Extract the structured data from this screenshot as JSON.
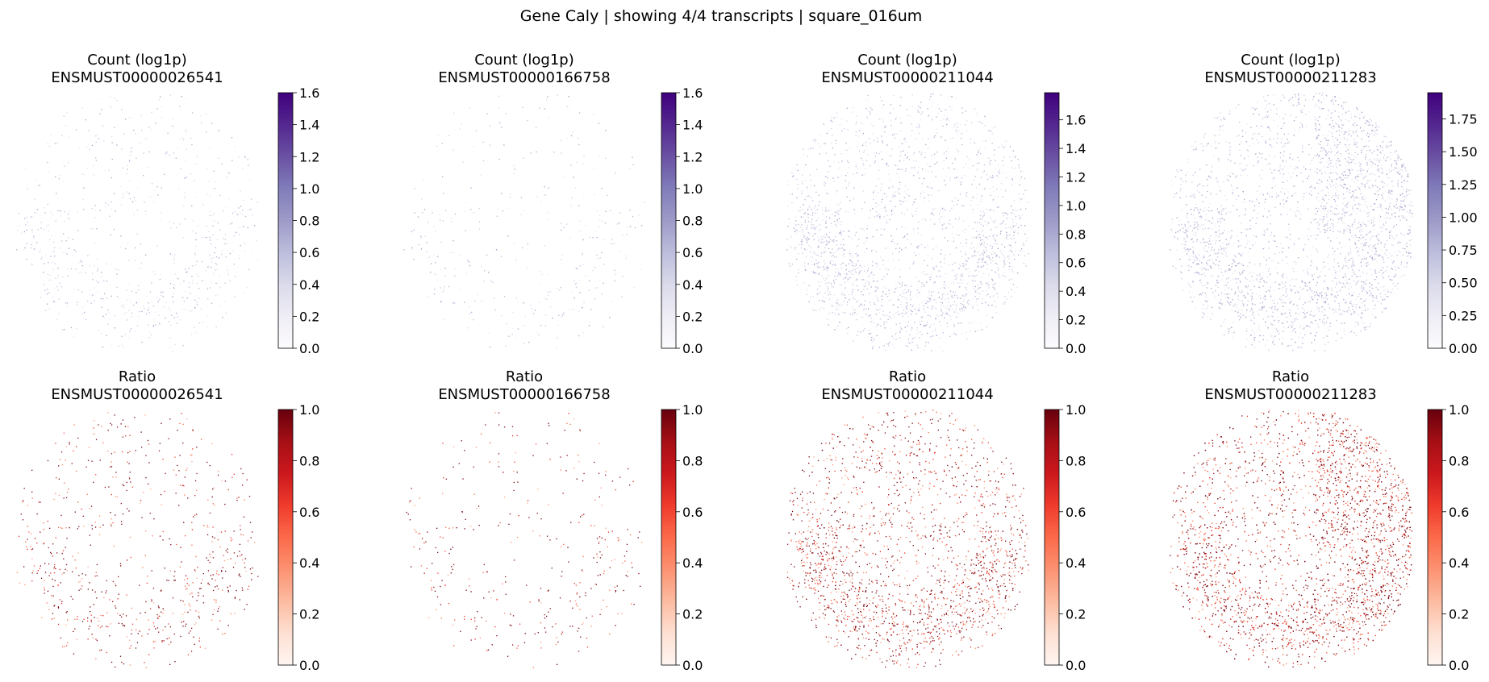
{
  "suptitle": "Gene Caly | showing 4/4 transcripts | square_016um",
  "colormaps": {
    "count": [
      "#fcfbfd",
      "#efedf5",
      "#dadaeb",
      "#bcbddc",
      "#9e9ac8",
      "#807dba",
      "#6a51a3",
      "#54278f",
      "#3f007d"
    ],
    "ratio": [
      "#fff5f0",
      "#fee0d2",
      "#fcbba1",
      "#fc9272",
      "#fb6a4a",
      "#ef3b2c",
      "#cb181d",
      "#a50f15",
      "#67000d"
    ]
  },
  "chart_data": [
    {
      "type": "scatter",
      "row": "count",
      "title_line1": "Count (log1p)",
      "title_line2": "ENSMUST00000026541",
      "colorbar": {
        "min": 0,
        "max": 1.6,
        "ticks": [
          "0.0",
          "0.2",
          "0.4",
          "0.6",
          "0.8",
          "1.0",
          "1.2",
          "1.4",
          "1.6"
        ],
        "tick_values": [
          0,
          0.2,
          0.4,
          0.6,
          0.8,
          1.0,
          1.2,
          1.4,
          1.6
        ]
      },
      "n_points": 700,
      "density": "sparse",
      "note_points": "spots colored by log1p count; near-white/grey"
    },
    {
      "type": "scatter",
      "row": "count",
      "title_line1": "Count (log1p)",
      "title_line2": "ENSMUST00000166758",
      "colorbar": {
        "min": 0,
        "max": 1.6,
        "ticks": [
          "0.0",
          "0.2",
          "0.4",
          "0.6",
          "0.8",
          "1.0",
          "1.2",
          "1.4",
          "1.6"
        ],
        "tick_values": [
          0,
          0.2,
          0.4,
          0.6,
          0.8,
          1.0,
          1.2,
          1.4,
          1.6
        ]
      },
      "n_points": 350,
      "density": "very-sparse"
    },
    {
      "type": "scatter",
      "row": "count",
      "title_line1": "Count (log1p)",
      "title_line2": "ENSMUST00000211044",
      "colorbar": {
        "min": 0,
        "max": 1.79,
        "ticks": [
          "0.0",
          "0.2",
          "0.4",
          "0.6",
          "0.8",
          "1.0",
          "1.2",
          "1.4",
          "1.6"
        ],
        "tick_values": [
          0,
          0.2,
          0.4,
          0.6,
          0.8,
          1.0,
          1.2,
          1.4,
          1.6
        ]
      },
      "n_points": 2200,
      "density": "medium"
    },
    {
      "type": "scatter",
      "row": "count",
      "title_line1": "Count (log1p)",
      "title_line2": "ENSMUST00000211283",
      "colorbar": {
        "min": 0,
        "max": 1.95,
        "ticks": [
          "0.00",
          "0.25",
          "0.50",
          "0.75",
          "1.00",
          "1.25",
          "1.50",
          "1.75"
        ],
        "tick_values": [
          0,
          0.25,
          0.5,
          0.75,
          1.0,
          1.25,
          1.5,
          1.75
        ]
      },
      "n_points": 3800,
      "density": "dense"
    },
    {
      "type": "scatter",
      "row": "ratio",
      "title_line1": "Ratio",
      "title_line2": "ENSMUST00000026541",
      "colorbar": {
        "min": 0,
        "max": 1.0,
        "ticks": [
          "0.0",
          "0.2",
          "0.4",
          "0.6",
          "0.8",
          "1.0"
        ],
        "tick_values": [
          0,
          0.2,
          0.4,
          0.6,
          0.8,
          1.0
        ]
      },
      "n_points": 700,
      "density": "sparse"
    },
    {
      "type": "scatter",
      "row": "ratio",
      "title_line1": "Ratio",
      "title_line2": "ENSMUST00000166758",
      "colorbar": {
        "min": 0,
        "max": 1.0,
        "ticks": [
          "0.0",
          "0.2",
          "0.4",
          "0.6",
          "0.8",
          "1.0"
        ],
        "tick_values": [
          0,
          0.2,
          0.4,
          0.6,
          0.8,
          1.0
        ]
      },
      "n_points": 350,
      "density": "very-sparse"
    },
    {
      "type": "scatter",
      "row": "ratio",
      "title_line1": "Ratio",
      "title_line2": "ENSMUST00000211044",
      "colorbar": {
        "min": 0,
        "max": 1.0,
        "ticks": [
          "0.0",
          "0.2",
          "0.4",
          "0.6",
          "0.8",
          "1.0"
        ],
        "tick_values": [
          0,
          0.2,
          0.4,
          0.6,
          0.8,
          1.0
        ]
      },
      "n_points": 2200,
      "density": "medium"
    },
    {
      "type": "scatter",
      "row": "ratio",
      "title_line1": "Ratio",
      "title_line2": "ENSMUST00000211283",
      "colorbar": {
        "min": 0,
        "max": 1.0,
        "ticks": [
          "0.0",
          "0.2",
          "0.4",
          "0.6",
          "0.8",
          "1.0"
        ],
        "tick_values": [
          0,
          0.2,
          0.4,
          0.6,
          0.8,
          1.0
        ]
      },
      "n_points": 3800,
      "density": "dense"
    }
  ]
}
